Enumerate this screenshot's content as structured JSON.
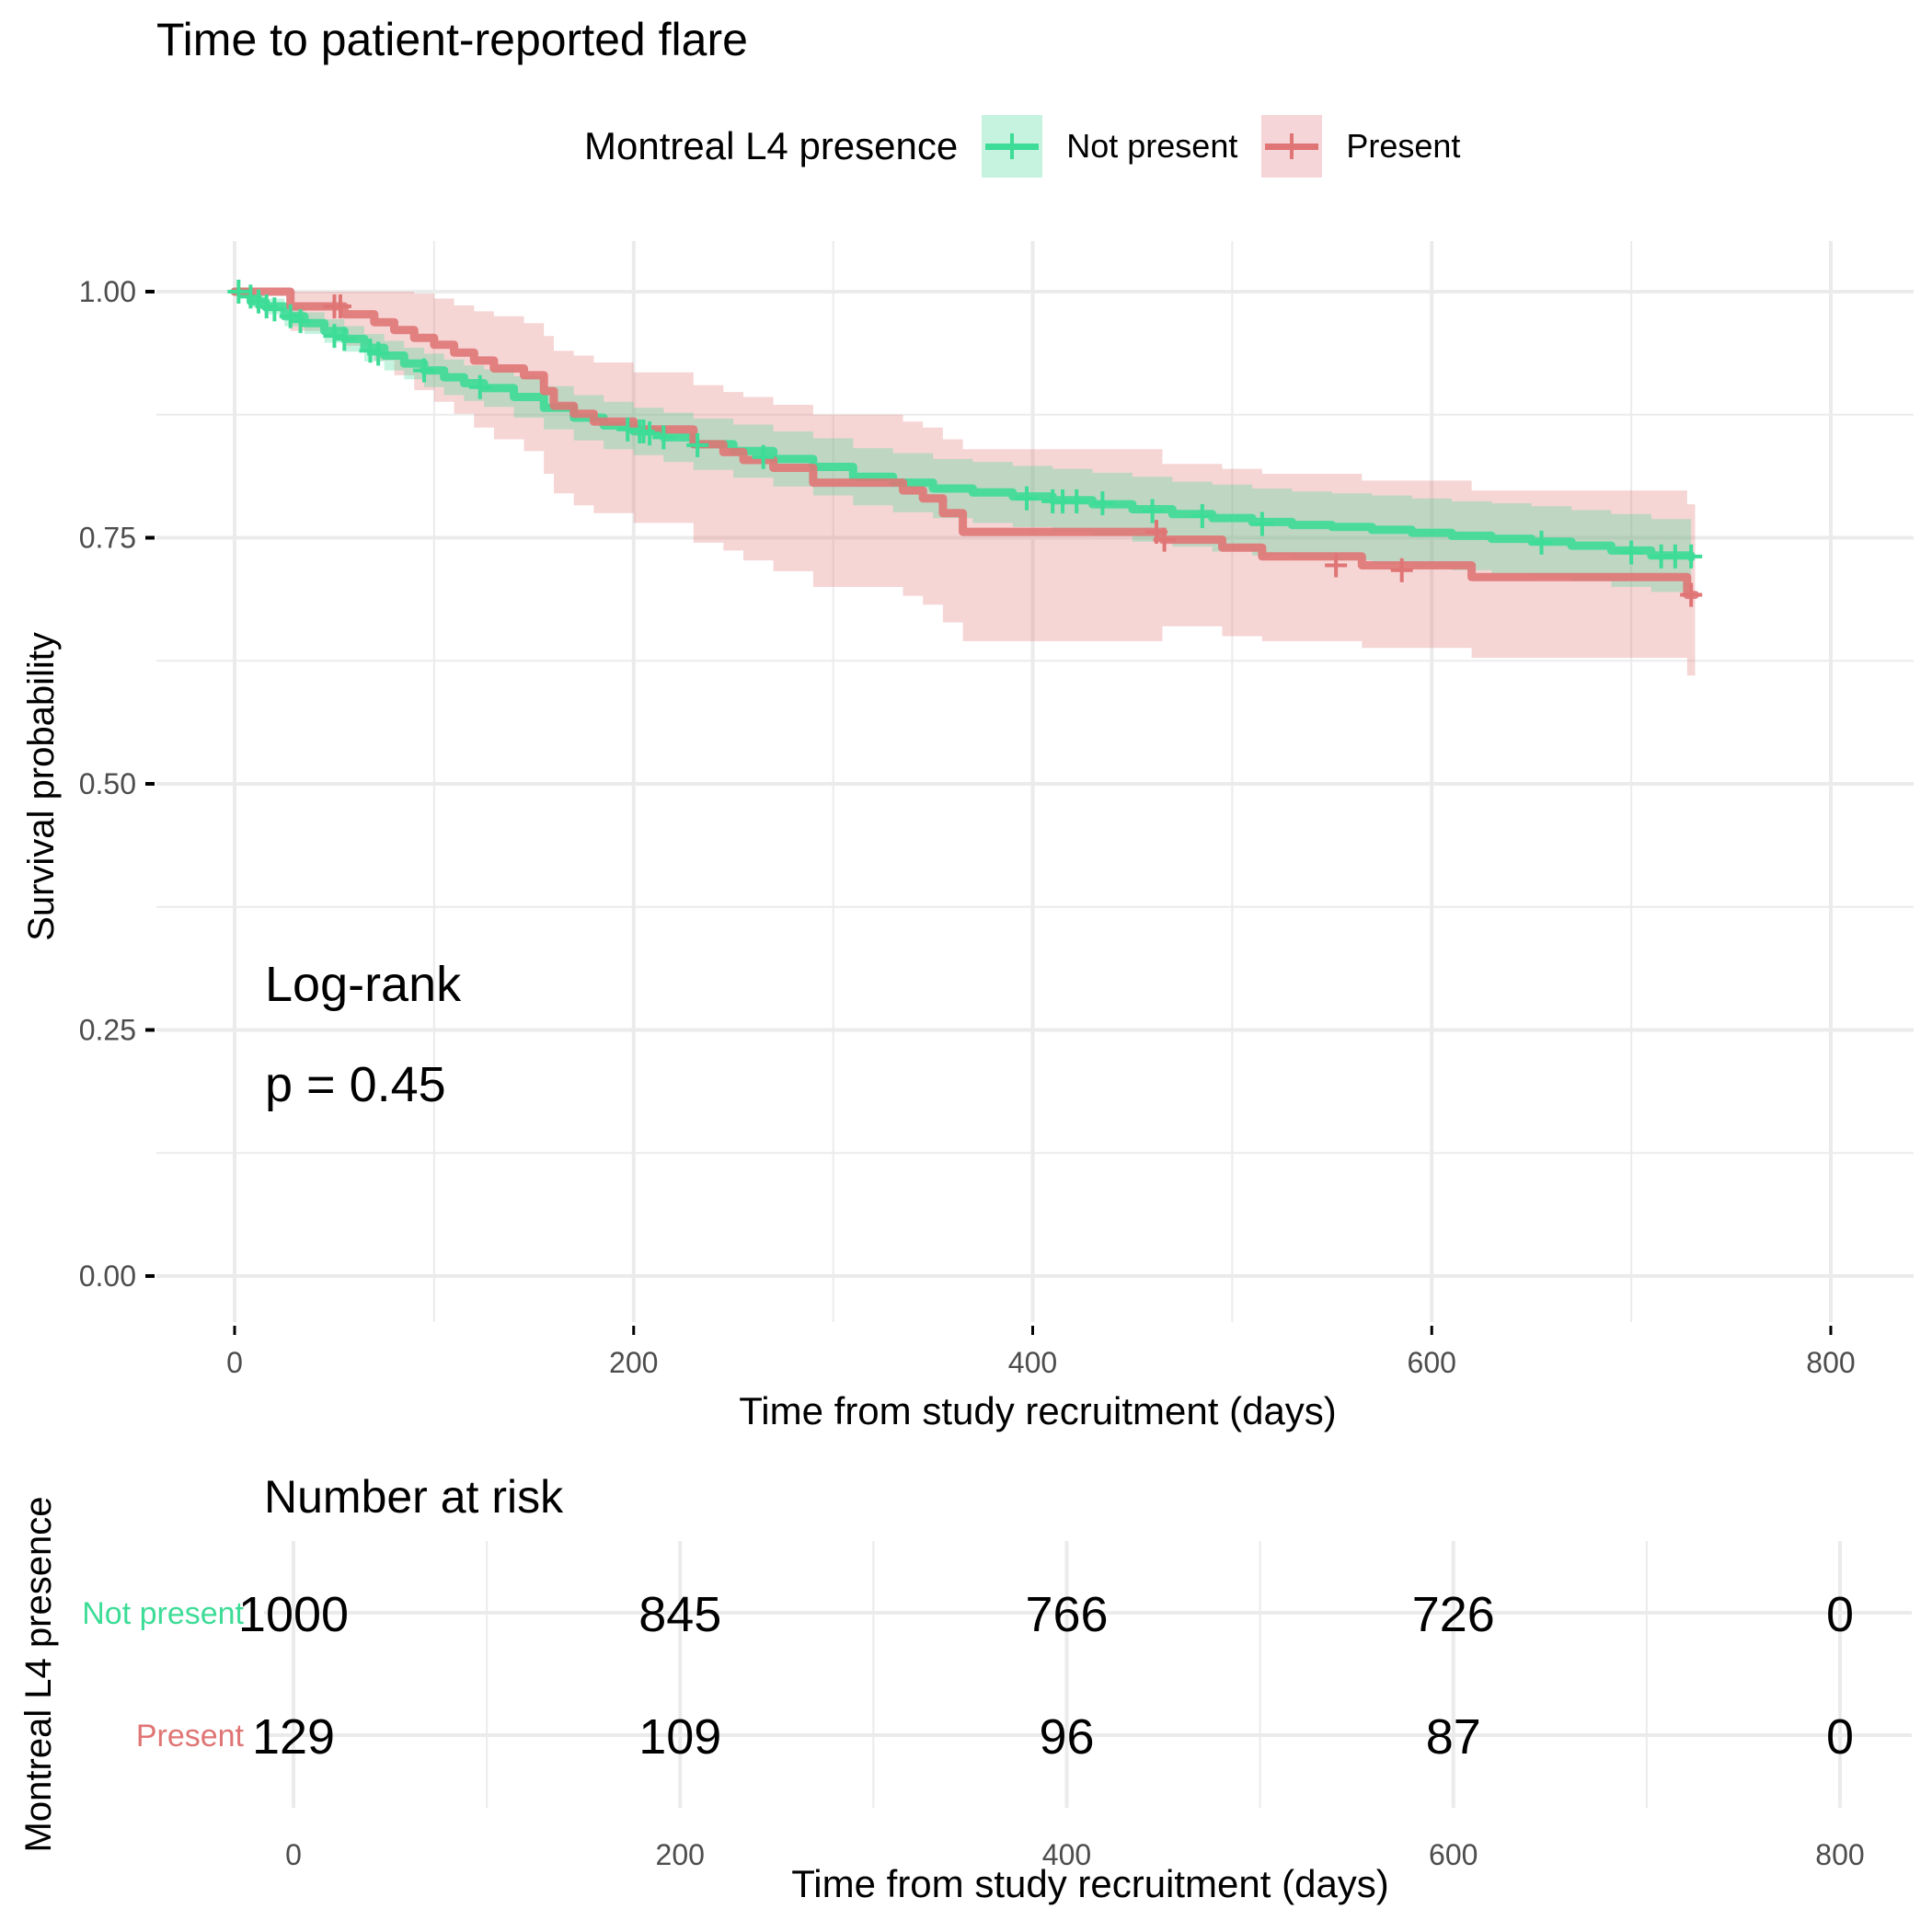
{
  "title": "Time to patient-reported flare",
  "legend": {
    "title": "Montreal L4 presence",
    "items": [
      {
        "label": "Not present",
        "color": "#3ddc97",
        "fill": "#c6f3df"
      },
      {
        "label": "Present",
        "color": "#e07575",
        "fill": "#f5d5d7"
      }
    ]
  },
  "annotation": {
    "line1": "Log-rank",
    "line2": "p = 0.45"
  },
  "chart_data": {
    "type": "line",
    "subtype": "kaplan-meier step",
    "title": "Time to patient-reported flare",
    "xlabel": "Time from study recruitment (days)",
    "ylabel": "Survival probability",
    "xlim": [
      -20,
      835
    ],
    "ylim": [
      -0.04,
      1.05
    ],
    "xticks": [
      0,
      200,
      400,
      600,
      800
    ],
    "xtick_labels": [
      "0",
      "200",
      "400",
      "600",
      "800"
    ],
    "yticks": [
      0,
      0.25,
      0.5,
      0.75,
      1.0
    ],
    "ytick_labels": [
      "0.00",
      "0.25",
      "0.50",
      "0.75",
      "1.00"
    ],
    "grid": true,
    "legend_position": "top",
    "legend_title": "Montreal L4 presence",
    "series": [
      {
        "name": "Not present",
        "color": "#3ddc97",
        "x": [
          0,
          8,
          15,
          25,
          35,
          45,
          55,
          65,
          75,
          85,
          95,
          105,
          115,
          125,
          140,
          155,
          170,
          185,
          200,
          215,
          230,
          250,
          270,
          290,
          310,
          330,
          350,
          370,
          390,
          410,
          430,
          450,
          470,
          490,
          510,
          530,
          550,
          570,
          590,
          610,
          630,
          650,
          670,
          690,
          710,
          730
        ],
        "y": [
          1.0,
          0.99,
          0.985,
          0.975,
          0.968,
          0.96,
          0.952,
          0.943,
          0.935,
          0.927,
          0.92,
          0.913,
          0.907,
          0.902,
          0.893,
          0.882,
          0.872,
          0.864,
          0.858,
          0.852,
          0.845,
          0.838,
          0.83,
          0.822,
          0.812,
          0.806,
          0.8,
          0.796,
          0.792,
          0.788,
          0.784,
          0.779,
          0.774,
          0.77,
          0.766,
          0.763,
          0.761,
          0.758,
          0.755,
          0.752,
          0.749,
          0.746,
          0.742,
          0.737,
          0.732,
          0.73
        ],
        "lower": [
          1.0,
          0.984,
          0.977,
          0.965,
          0.957,
          0.948,
          0.939,
          0.929,
          0.92,
          0.911,
          0.903,
          0.895,
          0.889,
          0.883,
          0.872,
          0.86,
          0.849,
          0.84,
          0.834,
          0.827,
          0.819,
          0.811,
          0.802,
          0.793,
          0.783,
          0.776,
          0.77,
          0.765,
          0.761,
          0.756,
          0.752,
          0.746,
          0.741,
          0.736,
          0.732,
          0.729,
          0.727,
          0.723,
          0.72,
          0.717,
          0.713,
          0.71,
          0.706,
          0.7,
          0.695,
          0.693
        ],
        "upper": [
          1.0,
          0.996,
          0.993,
          0.985,
          0.979,
          0.972,
          0.965,
          0.957,
          0.95,
          0.943,
          0.937,
          0.931,
          0.925,
          0.921,
          0.914,
          0.904,
          0.895,
          0.888,
          0.882,
          0.877,
          0.871,
          0.865,
          0.858,
          0.851,
          0.841,
          0.836,
          0.83,
          0.827,
          0.823,
          0.82,
          0.816,
          0.812,
          0.807,
          0.804,
          0.8,
          0.797,
          0.795,
          0.793,
          0.79,
          0.787,
          0.785,
          0.782,
          0.778,
          0.774,
          0.769,
          0.767
        ],
        "censor_x": [
          2,
          8,
          12,
          16,
          20,
          28,
          33,
          50,
          55,
          68,
          72,
          95,
          123,
          197,
          203,
          205,
          208,
          215,
          232,
          265,
          397,
          410,
          415,
          422,
          435,
          460,
          485,
          515,
          655,
          700,
          715,
          722,
          730
        ],
        "censor_y": [
          1.0,
          0.995,
          0.99,
          0.985,
          0.982,
          0.975,
          0.97,
          0.955,
          0.952,
          0.94,
          0.937,
          0.92,
          0.903,
          0.86,
          0.858,
          0.858,
          0.856,
          0.852,
          0.844,
          0.832,
          0.79,
          0.787,
          0.787,
          0.787,
          0.785,
          0.777,
          0.772,
          0.764,
          0.745,
          0.735,
          0.731,
          0.731,
          0.731
        ]
      },
      {
        "name": "Present",
        "color": "#e07575",
        "x": [
          0,
          28,
          55,
          70,
          80,
          90,
          100,
          110,
          120,
          130,
          145,
          155,
          160,
          170,
          180,
          200,
          230,
          245,
          255,
          270,
          290,
          335,
          345,
          355,
          365,
          465,
          495,
          515,
          565,
          620,
          728,
          732
        ],
        "y": [
          1.0,
          0.985,
          0.977,
          0.969,
          0.961,
          0.953,
          0.946,
          0.938,
          0.93,
          0.922,
          0.915,
          0.899,
          0.884,
          0.876,
          0.868,
          0.86,
          0.845,
          0.837,
          0.829,
          0.821,
          0.806,
          0.798,
          0.79,
          0.775,
          0.756,
          0.748,
          0.74,
          0.731,
          0.722,
          0.71,
          0.692,
          0.692
        ],
        "lower": [
          1.0,
          0.96,
          0.945,
          0.93,
          0.915,
          0.9,
          0.888,
          0.876,
          0.862,
          0.85,
          0.838,
          0.815,
          0.795,
          0.783,
          0.775,
          0.765,
          0.745,
          0.737,
          0.727,
          0.716,
          0.7,
          0.691,
          0.682,
          0.664,
          0.645,
          0.66,
          0.65,
          0.645,
          0.638,
          0.628,
          0.61,
          0.61
        ],
        "upper": [
          1.0,
          1.0,
          1.0,
          1.0,
          1.0,
          0.998,
          0.993,
          0.986,
          0.98,
          0.975,
          0.968,
          0.955,
          0.94,
          0.935,
          0.928,
          0.918,
          0.905,
          0.898,
          0.893,
          0.885,
          0.875,
          0.868,
          0.862,
          0.85,
          0.84,
          0.825,
          0.82,
          0.815,
          0.808,
          0.798,
          0.784,
          0.784
        ],
        "censor_x": [
          50,
          53,
          462,
          466,
          552,
          585,
          730
        ],
        "censor_y": [
          0.985,
          0.985,
          0.756,
          0.748,
          0.722,
          0.717,
          0.692
        ]
      }
    ],
    "risk_table": {
      "title": "Number at risk",
      "ylabel": "Montreal L4 presence",
      "xlabel": "Time from study recruitment (days)",
      "times": [
        0,
        200,
        400,
        600,
        800
      ],
      "xtick_labels": [
        "0",
        "200",
        "400",
        "600",
        "800"
      ],
      "rows": [
        {
          "group": "Not present",
          "color": "#3ddc97",
          "counts": [
            1000,
            845,
            766,
            726,
            0
          ]
        },
        {
          "group": "Present",
          "color": "#e07575",
          "counts": [
            129,
            109,
            96,
            87,
            0
          ]
        }
      ]
    }
  }
}
